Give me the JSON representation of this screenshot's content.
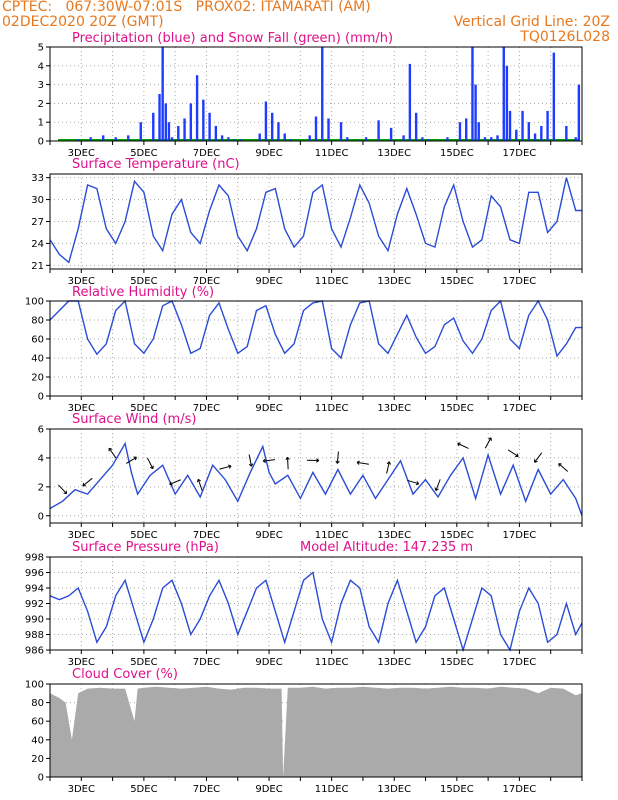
{
  "header": {
    "line1_left": "CPTEC:   067:30W-07:01S   PROX02: ITAMARATI (AM)",
    "line2_left": "02DEC2020 20Z (GMT)",
    "line2_right": "Vertical Grid Line: 20Z",
    "line3_right": "TQ0126L028"
  },
  "colors": {
    "header": "#e8781e",
    "title": "#e0108a",
    "precip": "#1e3cff",
    "snow": "#00a000",
    "line": "#2b4cd6",
    "cloud": "#aaaaaa",
    "grid": "#aaaaaa"
  },
  "chart_data": [
    {
      "id": "precip",
      "type": "bar",
      "title": "Precipitation (blue) and Snow Fall (green) (mm/h)",
      "ylim": [
        0,
        5
      ],
      "yticks": [
        0,
        1,
        2,
        3,
        4,
        5
      ],
      "x_labels": [
        "3DEC",
        "5DEC",
        "7DEC",
        "9DEC",
        "11DEC",
        "13DEC",
        "15DEC",
        "17DEC"
      ],
      "x": [
        0.9,
        1.3,
        1.7,
        2.1,
        2.5,
        2.9,
        3.3,
        3.5,
        3.6,
        3.7,
        3.8,
        3.9,
        4.1,
        4.3,
        4.5,
        4.7,
        4.9,
        5.1,
        5.3,
        5.5,
        5.7,
        5.9,
        6.1,
        6.7,
        6.9,
        7.1,
        7.3,
        7.5,
        7.7,
        8.3,
        8.5,
        8.7,
        8.9,
        9.3,
        9.5,
        10.1,
        10.5,
        10.9,
        11.3,
        11.5,
        11.7,
        11.9,
        12.1,
        12.7,
        13.1,
        13.3,
        13.5,
        13.6,
        13.7,
        13.9,
        14.1,
        14.3,
        14.5,
        14.6,
        14.7,
        14.9,
        15.1,
        15.3,
        15.5,
        15.7,
        15.9,
        16.1,
        16.5,
        16.8,
        16.9
      ],
      "values": [
        0.1,
        0.2,
        0.3,
        0.2,
        0.3,
        1.0,
        1.5,
        2.5,
        5.0,
        2.0,
        1.0,
        0.2,
        0.8,
        1.2,
        2.0,
        3.5,
        2.2,
        1.5,
        0.8,
        0.3,
        0.2,
        0.1,
        0.1,
        0.4,
        2.1,
        1.5,
        1.0,
        0.4,
        0.1,
        0.3,
        1.3,
        5.0,
        1.2,
        1.0,
        0.2,
        0.2,
        1.1,
        0.7,
        0.3,
        4.1,
        1.5,
        0.2,
        0.1,
        0.2,
        1.0,
        1.2,
        5.0,
        3.0,
        1.0,
        0.2,
        0.2,
        0.3,
        5.0,
        4.0,
        1.6,
        0.6,
        1.6,
        1.0,
        0.4,
        0.8,
        1.6,
        4.7,
        0.8,
        0.2,
        3.0
      ],
      "snow_values": "all 0"
    },
    {
      "id": "temp",
      "type": "line",
      "title": "Surface Temperature (nC)",
      "ylim": [
        20.5,
        33.5
      ],
      "yticks": [
        21,
        24,
        27,
        30,
        33
      ],
      "x_labels": [
        "3DEC",
        "5DEC",
        "7DEC",
        "9DEC",
        "11DEC",
        "13DEC",
        "15DEC",
        "17DEC"
      ],
      "x": [
        0,
        0.3,
        0.6,
        0.9,
        1.2,
        1.5,
        1.8,
        2.1,
        2.4,
        2.7,
        3.0,
        3.3,
        3.6,
        3.9,
        4.2,
        4.5,
        4.8,
        5.1,
        5.4,
        5.7,
        6.0,
        6.3,
        6.6,
        6.9,
        7.2,
        7.5,
        7.8,
        8.1,
        8.4,
        8.7,
        9.0,
        9.3,
        9.6,
        9.9,
        10.2,
        10.5,
        10.8,
        11.1,
        11.4,
        11.7,
        12.0,
        12.3,
        12.6,
        12.9,
        13.2,
        13.5,
        13.8,
        14.1,
        14.4,
        14.7,
        15.0,
        15.3,
        15.6,
        15.9,
        16.2,
        16.5,
        16.8,
        17.0
      ],
      "values": [
        24.5,
        22.5,
        21.4,
        26.0,
        32.0,
        31.5,
        26.0,
        24.0,
        27.0,
        32.5,
        31.0,
        25.0,
        23.0,
        28.0,
        30.0,
        25.5,
        24.0,
        28.5,
        32.0,
        30.5,
        25.0,
        23.0,
        26.0,
        31.0,
        31.5,
        26.0,
        23.5,
        25.0,
        31.0,
        32.0,
        26.0,
        23.5,
        27.5,
        32.0,
        29.5,
        25.0,
        23.0,
        28.0,
        31.5,
        28.0,
        24.0,
        23.5,
        29.0,
        32.0,
        27.0,
        23.5,
        24.5,
        30.5,
        29.0,
        24.5,
        24.0,
        31.0,
        31.0,
        25.5,
        27.0,
        33.0,
        28.5,
        28.5
      ]
    },
    {
      "id": "rh",
      "type": "line",
      "title": "Relative Humidity (%)",
      "ylim": [
        0,
        100
      ],
      "yticks": [
        0,
        20,
        40,
        60,
        80,
        100
      ],
      "x_labels": [
        "3DEC",
        "5DEC",
        "7DEC",
        "9DEC",
        "11DEC",
        "13DEC",
        "15DEC",
        "17DEC"
      ],
      "x": [
        0,
        0.3,
        0.6,
        0.9,
        1.2,
        1.5,
        1.8,
        2.1,
        2.4,
        2.7,
        3.0,
        3.3,
        3.6,
        3.9,
        4.2,
        4.5,
        4.8,
        5.1,
        5.4,
        5.7,
        6.0,
        6.3,
        6.6,
        6.9,
        7.2,
        7.5,
        7.8,
        8.1,
        8.4,
        8.7,
        9.0,
        9.3,
        9.6,
        9.9,
        10.2,
        10.5,
        10.8,
        11.1,
        11.4,
        11.7,
        12.0,
        12.3,
        12.6,
        12.9,
        13.2,
        13.5,
        13.8,
        14.1,
        14.4,
        14.7,
        15.0,
        15.3,
        15.6,
        15.9,
        16.2,
        16.5,
        16.8,
        17.0
      ],
      "values": [
        80,
        90,
        100,
        100,
        60,
        44,
        55,
        90,
        100,
        55,
        45,
        60,
        95,
        100,
        75,
        45,
        50,
        85,
        98,
        70,
        45,
        52,
        90,
        95,
        65,
        45,
        55,
        90,
        98,
        100,
        50,
        40,
        75,
        98,
        100,
        55,
        45,
        65,
        85,
        62,
        45,
        52,
        75,
        82,
        58,
        45,
        60,
        90,
        100,
        60,
        50,
        85,
        100,
        80,
        42,
        55,
        72,
        72
      ]
    },
    {
      "id": "wind",
      "type": "line",
      "title": "Surface Wind (m/s)",
      "ylim": [
        -0.5,
        6
      ],
      "yticks": [
        0,
        2,
        4,
        6
      ],
      "x_labels": [
        "3DEC",
        "5DEC",
        "7DEC",
        "9DEC",
        "11DEC",
        "13DEC",
        "15DEC",
        "17DEC"
      ],
      "x": [
        0,
        0.4,
        0.8,
        1.2,
        1.6,
        2.0,
        2.4,
        2.6,
        2.8,
        3.2,
        3.6,
        4.0,
        4.4,
        4.8,
        5.2,
        5.6,
        6.0,
        6.4,
        6.8,
        7.0,
        7.2,
        7.6,
        8.0,
        8.4,
        8.8,
        9.2,
        9.6,
        10.0,
        10.4,
        10.8,
        11.2,
        11.6,
        12.0,
        12.4,
        12.8,
        13.2,
        13.6,
        14.0,
        14.4,
        14.8,
        15.2,
        15.6,
        16.0,
        16.4,
        16.8,
        17.0
      ],
      "values": [
        0.5,
        1.0,
        1.8,
        1.5,
        2.5,
        3.5,
        5.0,
        3.0,
        1.5,
        2.8,
        3.5,
        1.5,
        2.8,
        1.3,
        3.5,
        2.5,
        1.0,
        3.0,
        4.8,
        3.0,
        2.2,
        2.8,
        1.2,
        3.0,
        1.5,
        3.2,
        1.5,
        2.8,
        1.2,
        2.5,
        3.8,
        1.5,
        2.5,
        1.3,
        2.8,
        4.0,
        1.2,
        4.2,
        1.5,
        3.5,
        1.0,
        3.2,
        1.5,
        2.5,
        1.2,
        0.0
      ]
    },
    {
      "id": "pressure",
      "type": "line",
      "title": "Surface Pressure (hPa)",
      "subtitle": "Model Altitude: 147.235 m",
      "ylim": [
        986,
        998
      ],
      "yticks": [
        986,
        988,
        990,
        992,
        994,
        996,
        998
      ],
      "x_labels": [
        "3DEC",
        "5DEC",
        "7DEC",
        "9DEC",
        "11DEC",
        "13DEC",
        "15DEC",
        "17DEC"
      ],
      "x": [
        0,
        0.3,
        0.6,
        0.9,
        1.2,
        1.5,
        1.8,
        2.1,
        2.4,
        2.7,
        3.0,
        3.3,
        3.6,
        3.9,
        4.2,
        4.5,
        4.8,
        5.1,
        5.4,
        5.7,
        6.0,
        6.3,
        6.6,
        6.9,
        7.2,
        7.5,
        7.8,
        8.1,
        8.4,
        8.7,
        9.0,
        9.3,
        9.6,
        9.9,
        10.2,
        10.5,
        10.8,
        11.1,
        11.4,
        11.7,
        12.0,
        12.3,
        12.6,
        12.9,
        13.2,
        13.5,
        13.8,
        14.1,
        14.4,
        14.7,
        15.0,
        15.3,
        15.6,
        15.9,
        16.2,
        16.5,
        16.8,
        17.0
      ],
      "values": [
        993,
        992.5,
        993,
        994,
        991,
        987,
        989,
        993,
        995,
        991,
        987,
        990,
        994,
        995,
        992,
        988,
        990,
        993,
        995,
        992,
        988,
        991,
        994,
        995,
        991,
        987,
        991,
        995,
        996,
        990,
        987,
        992,
        995,
        994,
        989,
        987,
        992,
        995,
        991,
        987,
        989,
        993,
        994,
        990,
        986,
        990,
        994,
        993,
        988,
        986,
        991,
        994,
        992,
        987,
        988,
        992,
        988,
        989.5
      ]
    },
    {
      "id": "cloud",
      "type": "area",
      "title": "Cloud Cover (%)",
      "ylim": [
        0,
        100
      ],
      "yticks": [
        0,
        20,
        40,
        60,
        80,
        100
      ],
      "x_labels": [
        "3DEC",
        "5DEC",
        "7DEC",
        "9DEC",
        "11DEC",
        "13DEC",
        "15DEC",
        "17DEC"
      ],
      "x": [
        0,
        0.3,
        0.5,
        0.7,
        0.9,
        1.2,
        1.6,
        2.0,
        2.4,
        2.7,
        2.8,
        3.0,
        3.4,
        3.8,
        4.2,
        4.6,
        5.0,
        5.4,
        5.8,
        6.2,
        6.6,
        7.0,
        7.4,
        7.45,
        7.6,
        8.0,
        8.4,
        8.8,
        9.2,
        9.6,
        10.0,
        10.4,
        10.8,
        11.2,
        11.6,
        12.0,
        12.4,
        12.8,
        13.2,
        13.6,
        14.0,
        14.4,
        14.8,
        15.2,
        15.6,
        16.0,
        16.4,
        16.8,
        17.0
      ],
      "values": [
        90,
        85,
        80,
        40,
        90,
        95,
        96,
        95,
        95,
        60,
        95,
        96,
        97,
        96,
        95,
        96,
        97,
        95,
        94,
        96,
        96,
        95,
        95,
        0,
        96,
        96,
        97,
        95,
        96,
        96,
        97,
        96,
        95,
        96,
        96,
        95,
        96,
        97,
        96,
        96,
        95,
        97,
        96,
        95,
        90,
        96,
        95,
        88,
        90
      ]
    }
  ]
}
